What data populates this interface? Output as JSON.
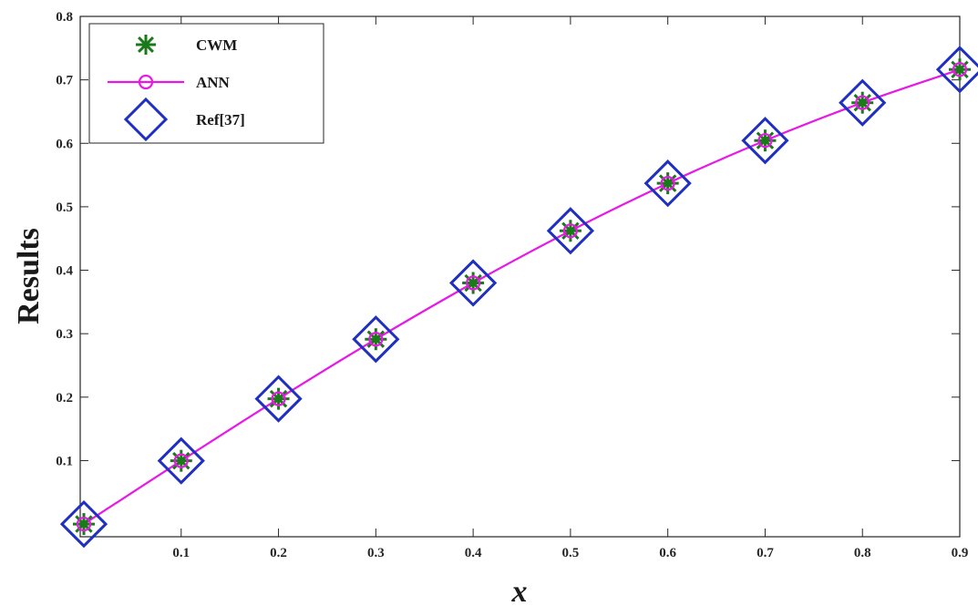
{
  "chart_data": {
    "type": "line",
    "xlabel": "x",
    "ylabel": "Results",
    "xlim": [
      0,
      0.9
    ],
    "ylim": [
      -0.02,
      0.8
    ],
    "xticks": [
      0.1,
      0.2,
      0.3,
      0.4,
      0.5,
      0.6,
      0.7,
      0.8,
      0.9
    ],
    "xtick_labels": [
      "0.1",
      "0.2",
      "0.3",
      "0.4",
      "0.5",
      "0.6",
      "0.7",
      "0.8",
      "0.9"
    ],
    "yticks": [
      0.1,
      0.2,
      0.3,
      0.4,
      0.5,
      0.6,
      0.7,
      0.8
    ],
    "ytick_labels": [
      "0.1",
      "0.2",
      "0.3",
      "0.4",
      "0.5",
      "0.6",
      "0.7",
      "0.8"
    ],
    "grid": false,
    "legend_position": "top-left",
    "x": [
      0,
      0.1,
      0.2,
      0.3,
      0.4,
      0.5,
      0.6,
      0.7,
      0.8,
      0.9
    ],
    "series": [
      {
        "name": "CWM",
        "marker": "asterisk",
        "line": false,
        "color": "#1a7a1a",
        "values": [
          0.0,
          0.0997,
          0.1974,
          0.2913,
          0.3799,
          0.4621,
          0.537,
          0.6044,
          0.664,
          0.7163
        ]
      },
      {
        "name": "ANN",
        "marker": "circle",
        "line": true,
        "color": "#e619e6",
        "values": [
          0.0,
          0.0997,
          0.1974,
          0.2913,
          0.3799,
          0.4621,
          0.537,
          0.6044,
          0.664,
          0.7163
        ]
      },
      {
        "name": "Ref[37]",
        "marker": "diamond",
        "line": false,
        "color": "#1f2fbf",
        "values": [
          0.0,
          0.0997,
          0.1974,
          0.2913,
          0.3799,
          0.4621,
          0.537,
          0.6044,
          0.664,
          0.7163
        ]
      }
    ]
  }
}
